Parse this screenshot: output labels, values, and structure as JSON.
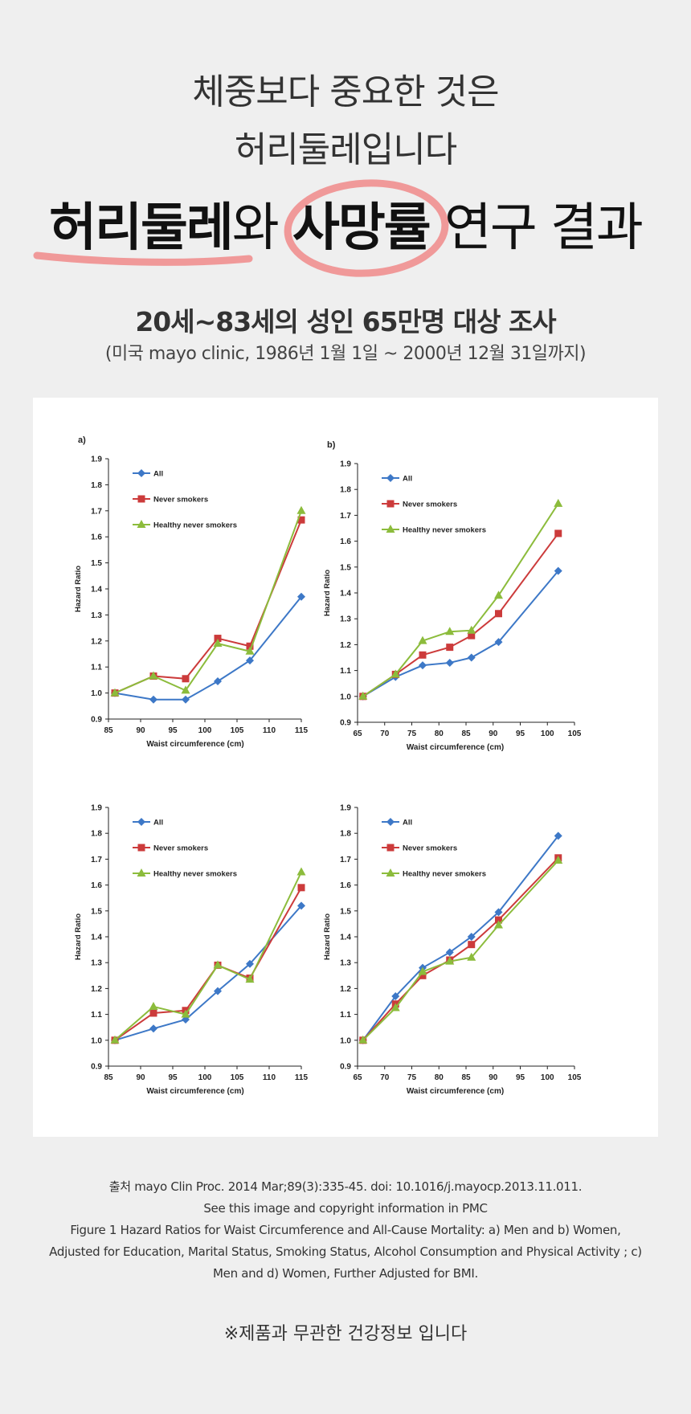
{
  "heading": {
    "line1": "체중보다 중요한 것은",
    "line2": "허리둘레입니다",
    "title_part1": "허리둘레",
    "title_part2": "와 ",
    "title_part3": "사망률",
    "title_part4": " 연구 결과",
    "subtitle": "20세~83세의 성인 65만명 대상 조사",
    "subtitle2": "(미국 mayo clinic, 1986년 1월 1일 ~ 2000년 12월 31일까지)"
  },
  "colors": {
    "all": "#3d78c7",
    "never": "#cc3b3b",
    "healthy": "#8cbc3c",
    "highlight": "#f08a8a"
  },
  "chart_data": [
    {
      "type": "line",
      "panel_label": "a)",
      "xlabel": "Waist circumference (cm)",
      "ylabel": "Hazard Ratio",
      "xlim": [
        85,
        115
      ],
      "xticks": [
        85,
        90,
        95,
        100,
        105,
        110,
        115
      ],
      "ylim": [
        0.9,
        1.9
      ],
      "yticks": [
        "0.9",
        "1.0",
        "1.1",
        "1.2",
        "1.3",
        "1.4",
        "1.5",
        "1.6",
        "1.7",
        "1.8",
        "1.9"
      ],
      "legend": "top-left",
      "series": [
        {
          "name": "All",
          "marker": "diamond",
          "x": [
            86,
            92,
            97,
            102,
            107,
            115
          ],
          "y": [
            1.0,
            0.975,
            0.975,
            1.045,
            1.125,
            1.37
          ]
        },
        {
          "name": "Never smokers",
          "marker": "square",
          "x": [
            86,
            92,
            97,
            102,
            107,
            115
          ],
          "y": [
            1.0,
            1.065,
            1.055,
            1.21,
            1.18,
            1.665
          ]
        },
        {
          "name": "Healthy never smokers",
          "marker": "triangle",
          "x": [
            86,
            92,
            97,
            102,
            107,
            115
          ],
          "y": [
            1.0,
            1.065,
            1.01,
            1.19,
            1.16,
            1.7
          ]
        }
      ]
    },
    {
      "type": "line",
      "panel_label": "b)",
      "xlabel": "Waist circumference (cm)",
      "ylabel": "Hazard Ratio",
      "xlim": [
        65,
        105
      ],
      "xticks": [
        65,
        70,
        75,
        80,
        85,
        90,
        95,
        100,
        105
      ],
      "ylim": [
        0.9,
        1.9
      ],
      "yticks": [
        "0.9",
        "1.0",
        "1.1",
        "1.2",
        "1.3",
        "1.4",
        "1.5",
        "1.6",
        "1.7",
        "1.8",
        "1.9"
      ],
      "legend": "top-left",
      "series": [
        {
          "name": "All",
          "marker": "diamond",
          "x": [
            66,
            72,
            77,
            82,
            86,
            91,
            102
          ],
          "y": [
            1.0,
            1.075,
            1.12,
            1.13,
            1.15,
            1.21,
            1.485
          ]
        },
        {
          "name": "Never smokers",
          "marker": "square",
          "x": [
            66,
            72,
            77,
            82,
            86,
            91,
            102
          ],
          "y": [
            1.0,
            1.085,
            1.16,
            1.19,
            1.235,
            1.32,
            1.63
          ]
        },
        {
          "name": "Healthy never smokers",
          "marker": "triangle",
          "x": [
            66,
            72,
            77,
            82,
            86,
            91,
            102
          ],
          "y": [
            1.0,
            1.085,
            1.215,
            1.25,
            1.255,
            1.39,
            1.745
          ]
        }
      ]
    },
    {
      "type": "line",
      "panel_label": "",
      "xlabel": "Waist circumference (cm)",
      "ylabel": "Hazard Ratio",
      "xlim": [
        85,
        115
      ],
      "xticks": [
        85,
        90,
        95,
        100,
        105,
        110,
        115
      ],
      "ylim": [
        0.9,
        1.9
      ],
      "yticks": [
        "0.9",
        "1.0",
        "1.1",
        "1.2",
        "1.3",
        "1.4",
        "1.5",
        "1.6",
        "1.7",
        "1.8",
        "1.9"
      ],
      "legend": "top-left",
      "series": [
        {
          "name": "All",
          "marker": "diamond",
          "x": [
            86,
            92,
            97,
            102,
            107,
            115
          ],
          "y": [
            1.0,
            1.045,
            1.08,
            1.19,
            1.295,
            1.52
          ]
        },
        {
          "name": "Never smokers",
          "marker": "square",
          "x": [
            86,
            92,
            97,
            102,
            107,
            115
          ],
          "y": [
            1.0,
            1.105,
            1.115,
            1.29,
            1.24,
            1.59
          ]
        },
        {
          "name": "Healthy never smokers",
          "marker": "triangle",
          "x": [
            86,
            92,
            97,
            102,
            107,
            115
          ],
          "y": [
            1.0,
            1.13,
            1.1,
            1.29,
            1.235,
            1.65
          ]
        }
      ]
    },
    {
      "type": "line",
      "panel_label": "",
      "xlabel": "Waist circumference (cm)",
      "ylabel": "Hazard Ratio",
      "xlim": [
        65,
        105
      ],
      "xticks": [
        65,
        70,
        75,
        80,
        85,
        90,
        95,
        100,
        105
      ],
      "ylim": [
        0.9,
        1.9
      ],
      "yticks": [
        "0.9",
        "1.0",
        "1.1",
        "1.2",
        "1.3",
        "1.4",
        "1.5",
        "1.6",
        "1.7",
        "1.8",
        "1.9"
      ],
      "legend": "top-left",
      "series": [
        {
          "name": "All",
          "marker": "diamond",
          "x": [
            66,
            72,
            77,
            82,
            86,
            91,
            102
          ],
          "y": [
            1.0,
            1.17,
            1.28,
            1.34,
            1.4,
            1.495,
            1.79
          ]
        },
        {
          "name": "Never smokers",
          "marker": "square",
          "x": [
            66,
            72,
            77,
            82,
            86,
            91,
            102
          ],
          "y": [
            1.0,
            1.14,
            1.25,
            1.31,
            1.37,
            1.465,
            1.705
          ]
        },
        {
          "name": "Healthy never smokers",
          "marker": "triangle",
          "x": [
            66,
            72,
            77,
            82,
            86,
            91,
            102
          ],
          "y": [
            1.0,
            1.125,
            1.265,
            1.305,
            1.32,
            1.445,
            1.695
          ]
        }
      ]
    }
  ],
  "source": {
    "line1": "출처 mayo Clin Proc. 2014 Mar;89(3):335-45. doi: 10.1016/j.mayocp.2013.11.011.",
    "line2": "See this image and copyright information in PMC",
    "line3": "Figure 1 Hazard Ratios for Waist Circumference and All-Cause Mortality: a) Men and b) Women,",
    "line4": "Adjusted for Education, Marital Status, Smoking Status, Alcohol Consumption and Physical Activity ; c)",
    "line5": "Men and d) Women, Further Adjusted for BMI."
  },
  "notice": "※제품과 무관한 건강정보 입니다"
}
